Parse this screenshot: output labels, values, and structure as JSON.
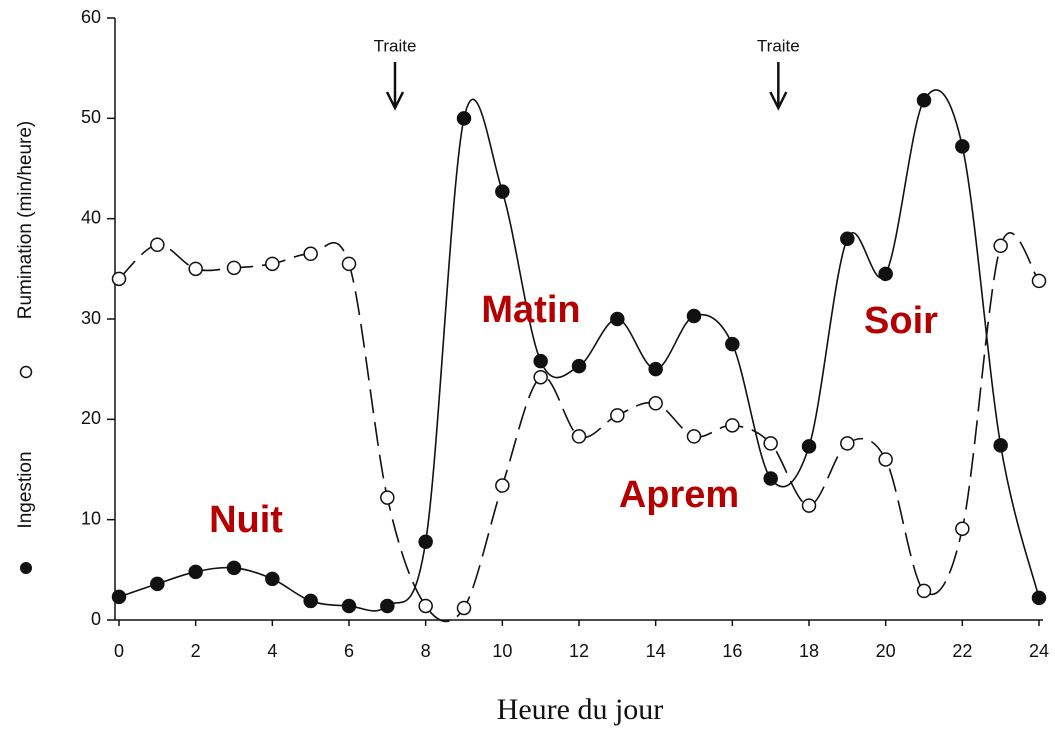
{
  "chart_data": {
    "type": "line",
    "x_label": "Heure du jour",
    "x": [
      0,
      1,
      2,
      3,
      4,
      5,
      6,
      7,
      8,
      9,
      10,
      11,
      12,
      13,
      14,
      15,
      16,
      17,
      18,
      19,
      20,
      21,
      22,
      23,
      24
    ],
    "series": [
      {
        "name": "Ingestion",
        "color": "#111111",
        "marker": "filled",
        "values": [
          2.3,
          3.6,
          4.8,
          5.2,
          4.1,
          1.9,
          1.4,
          1.4,
          7.8,
          50,
          42.7,
          25.8,
          25.3,
          30,
          25,
          30.3,
          27.5,
          14.1,
          17.3,
          38,
          34.5,
          51.8,
          47.2,
          17.4,
          2.2
        ]
      },
      {
        "name": "Rumination (min/heure)",
        "color": "#111111",
        "marker": "open",
        "dashed": true,
        "values": [
          34,
          37.4,
          35,
          35.1,
          35.5,
          36.5,
          35.5,
          12.2,
          1.4,
          1.2,
          13.4,
          24.2,
          18.3,
          20.4,
          21.6,
          18.3,
          19.4,
          17.6,
          11.4,
          17.6,
          16,
          2.9,
          9.1,
          37.3,
          33.8
        ]
      }
    ],
    "xlim": [
      0,
      24
    ],
    "xticks": [
      0,
      2,
      4,
      6,
      8,
      10,
      12,
      14,
      16,
      18,
      20,
      22,
      24
    ],
    "ylim": [
      0,
      60
    ],
    "yticks": [
      0,
      10,
      20,
      30,
      40,
      50,
      60
    ],
    "arrows": [
      {
        "text": "Traite",
        "x": 7.2
      },
      {
        "text": "Traite",
        "x": 17.2
      }
    ],
    "annotations": [
      "Nuit",
      "Matin",
      "Aprem",
      "Soir"
    ],
    "annotation_color": "#b40000"
  }
}
